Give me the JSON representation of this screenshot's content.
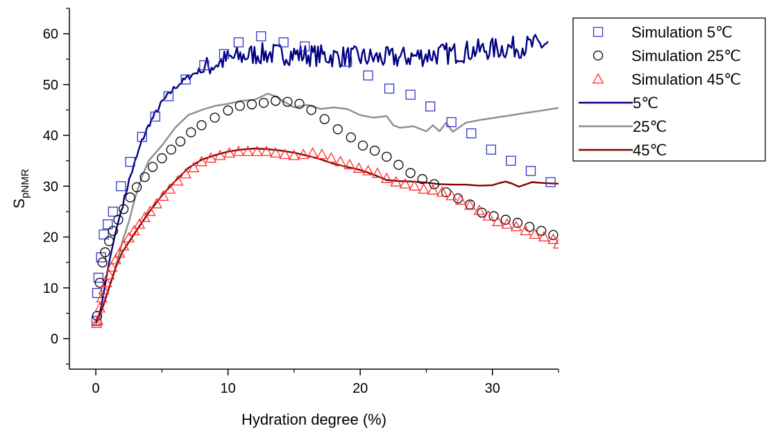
{
  "chart_data": {
    "type": "scatter",
    "xlabel": "Hydration degree (%)",
    "ylabel_main": "S",
    "ylabel_sub": "pNMR",
    "xlim": [
      -2,
      35
    ],
    "ylim": [
      -6,
      65
    ],
    "xticks": [
      0,
      10,
      20,
      30
    ],
    "yticks": [
      0,
      10,
      20,
      30,
      40,
      50,
      60
    ],
    "legend_position": "outside-right",
    "grid": false,
    "series": [
      {
        "name": "Simulation 5℃",
        "kind": "markers",
        "marker": "square",
        "color": "#3333cc",
        "x": [
          0.05,
          0.1,
          0.2,
          0.4,
          0.6,
          0.9,
          1.3,
          1.9,
          2.6,
          3.5,
          4.5,
          5.5,
          6.8,
          8.2,
          9.7,
          10.8,
          12.5,
          14.2,
          15.8,
          19.0,
          20.6,
          22.2,
          23.8,
          25.3,
          26.9,
          28.4,
          29.9,
          31.4,
          32.9,
          34.4
        ],
        "y": [
          3.5,
          9,
          12,
          16,
          20.5,
          22.5,
          25,
          30,
          34.8,
          39.7,
          43.7,
          47.7,
          51,
          53.8,
          56,
          58.3,
          59.5,
          58.3,
          57.5,
          54.5,
          51.8,
          49.2,
          48,
          45.7,
          42.6,
          40.4,
          37.2,
          35,
          33,
          30.8
        ]
      },
      {
        "name": "Simulation 25℃",
        "kind": "markers",
        "marker": "circle",
        "color": "#000000",
        "x": [
          0.1,
          0.3,
          0.5,
          0.7,
          1.0,
          1.3,
          1.7,
          2.1,
          2.6,
          3.1,
          3.7,
          4.3,
          5.0,
          5.7,
          6.4,
          7.2,
          8.0,
          9.0,
          10.0,
          10.9,
          11.8,
          12.7,
          13.6,
          14.5,
          15.4,
          16.3,
          17.3,
          18.3,
          19.3,
          20.2,
          21.1,
          22.0,
          22.9,
          23.8,
          24.7,
          25.6,
          26.5,
          27.4,
          28.3,
          29.2,
          30.1,
          31.0,
          31.9,
          32.8,
          33.7,
          34.6
        ],
        "y": [
          4.5,
          11,
          15,
          17,
          19.2,
          21.2,
          23.4,
          25.5,
          27.8,
          29.8,
          31.8,
          33.8,
          35.5,
          37.2,
          38.8,
          40.6,
          42,
          43.5,
          44.9,
          45.8,
          46.1,
          46.4,
          46.8,
          46.6,
          46.2,
          45,
          43.2,
          41.2,
          39.6,
          38,
          37,
          35.8,
          34.2,
          32.6,
          31.4,
          30.4,
          28.8,
          27.6,
          26.4,
          24.8,
          24.1,
          23.4,
          22.8,
          22,
          21.2,
          20.4
        ]
      },
      {
        "name": "Simulation 45℃",
        "kind": "markers",
        "marker": "triangle",
        "color": "#ff2a2a",
        "x": [
          0.05,
          0.15,
          0.3,
          0.45,
          0.6,
          0.8,
          1.0,
          1.2,
          1.5,
          1.8,
          2.1,
          2.5,
          2.9,
          3.3,
          3.7,
          4.1,
          4.6,
          5.1,
          5.6,
          6.2,
          6.8,
          7.4,
          8.0,
          8.7,
          9.4,
          10.1,
          10.8,
          11.5,
          12.2,
          12.9,
          13.6,
          14.3,
          15.0,
          15.7,
          16.4,
          17.1,
          17.8,
          18.5,
          19.2,
          19.9,
          20.6,
          21.3,
          22.0,
          22.7,
          23.4,
          24.1,
          24.8,
          25.5,
          26.2,
          26.9,
          27.6,
          28.3,
          29.0,
          29.7,
          30.4,
          31.1,
          31.8,
          32.5,
          33.2,
          33.9,
          34.6,
          35.0
        ],
        "y": [
          3,
          3.5,
          6,
          8,
          9.6,
          11,
          12.5,
          14,
          15.5,
          16.8,
          18.2,
          19.8,
          21.2,
          22.5,
          23.8,
          25,
          26.5,
          28,
          29.4,
          31,
          32.4,
          33.6,
          34.8,
          35.5,
          36,
          36.5,
          36.8,
          36.8,
          36.8,
          36.8,
          36.5,
          36.2,
          36,
          36.2,
          36.5,
          36.2,
          35.5,
          34.8,
          34.2,
          33.5,
          33,
          32.5,
          31.5,
          30.8,
          30.4,
          30,
          29.4,
          29.2,
          28.8,
          28.1,
          27.2,
          26.2,
          25.2,
          24.1,
          23,
          22.5,
          22,
          21.2,
          20.5,
          20,
          19.5,
          18.6
        ]
      },
      {
        "name": "5℃",
        "kind": "line",
        "color": "#000080",
        "noise": 2.2,
        "noise_from_x": 8,
        "x": [
          0,
          0.3,
          0.6,
          1,
          1.5,
          2,
          2.5,
          3,
          3.5,
          4,
          5,
          6,
          7,
          8,
          9,
          10,
          11,
          12,
          13,
          14,
          15,
          16,
          17,
          18,
          19,
          20,
          21,
          22,
          23,
          24,
          25,
          26,
          27,
          28,
          29,
          30,
          31,
          32,
          33,
          34,
          34.3
        ],
        "y": [
          3,
          5,
          9,
          15,
          21,
          26,
          31,
          35,
          39,
          42,
          46.5,
          49.5,
          51.5,
          53,
          54,
          55,
          55.5,
          56,
          56,
          56,
          56,
          55.8,
          55.7,
          55.5,
          55.5,
          55.3,
          55.2,
          55.2,
          55.3,
          55.5,
          55.8,
          56,
          56.2,
          56.5,
          56.8,
          57,
          57.2,
          57.4,
          57.7,
          58,
          58.3
        ]
      },
      {
        "name": "25℃",
        "kind": "line",
        "color": "#8c8c8c",
        "x": [
          0,
          0.5,
          1,
          1.5,
          2,
          2.5,
          3,
          3.5,
          4,
          5,
          6,
          7,
          8,
          9,
          10,
          11,
          12,
          13,
          13.5,
          14,
          15,
          16,
          17,
          18,
          19,
          20,
          21,
          22,
          22.5,
          23,
          24,
          25,
          25.5,
          26,
          26.5,
          27,
          28,
          29,
          30,
          31,
          32,
          33,
          34,
          35
        ],
        "y": [
          3,
          6,
          10,
          14,
          19,
          23,
          28,
          32,
          35,
          38,
          41.5,
          44,
          45,
          45.8,
          46.2,
          46.8,
          47,
          48.2,
          47.8,
          47,
          45.5,
          46,
          45.2,
          45.5,
          45.2,
          44,
          43.5,
          43.8,
          42,
          41.5,
          41.8,
          40.8,
          42,
          40.8,
          42.5,
          40.7,
          42.5,
          43,
          43.4,
          43.8,
          44.2,
          44.6,
          45,
          45.4
        ]
      },
      {
        "name": "45℃",
        "kind": "line",
        "color": "#800000",
        "x": [
          0,
          0.5,
          1,
          1.5,
          2,
          3,
          4,
          5,
          6,
          7,
          8,
          9,
          10,
          11,
          12,
          13,
          14,
          15,
          16,
          17,
          18,
          19,
          20,
          21,
          22,
          23,
          24,
          25,
          26,
          27,
          28,
          29,
          30,
          30.5,
          31,
          31.5,
          32,
          33,
          34,
          35
        ],
        "y": [
          3,
          6,
          10,
          14,
          17,
          21,
          24.8,
          28.2,
          31,
          33.6,
          35.2,
          36.1,
          36.8,
          37.2,
          37.4,
          37.3,
          37,
          36.6,
          36,
          35.3,
          34.4,
          33.8,
          33.2,
          32.3,
          31.2,
          31,
          30.9,
          30.7,
          30.4,
          30.3,
          30.3,
          30.1,
          30.2,
          30.6,
          30.9,
          30.5,
          29.9,
          30.8,
          30.6,
          30.5
        ]
      }
    ]
  }
}
